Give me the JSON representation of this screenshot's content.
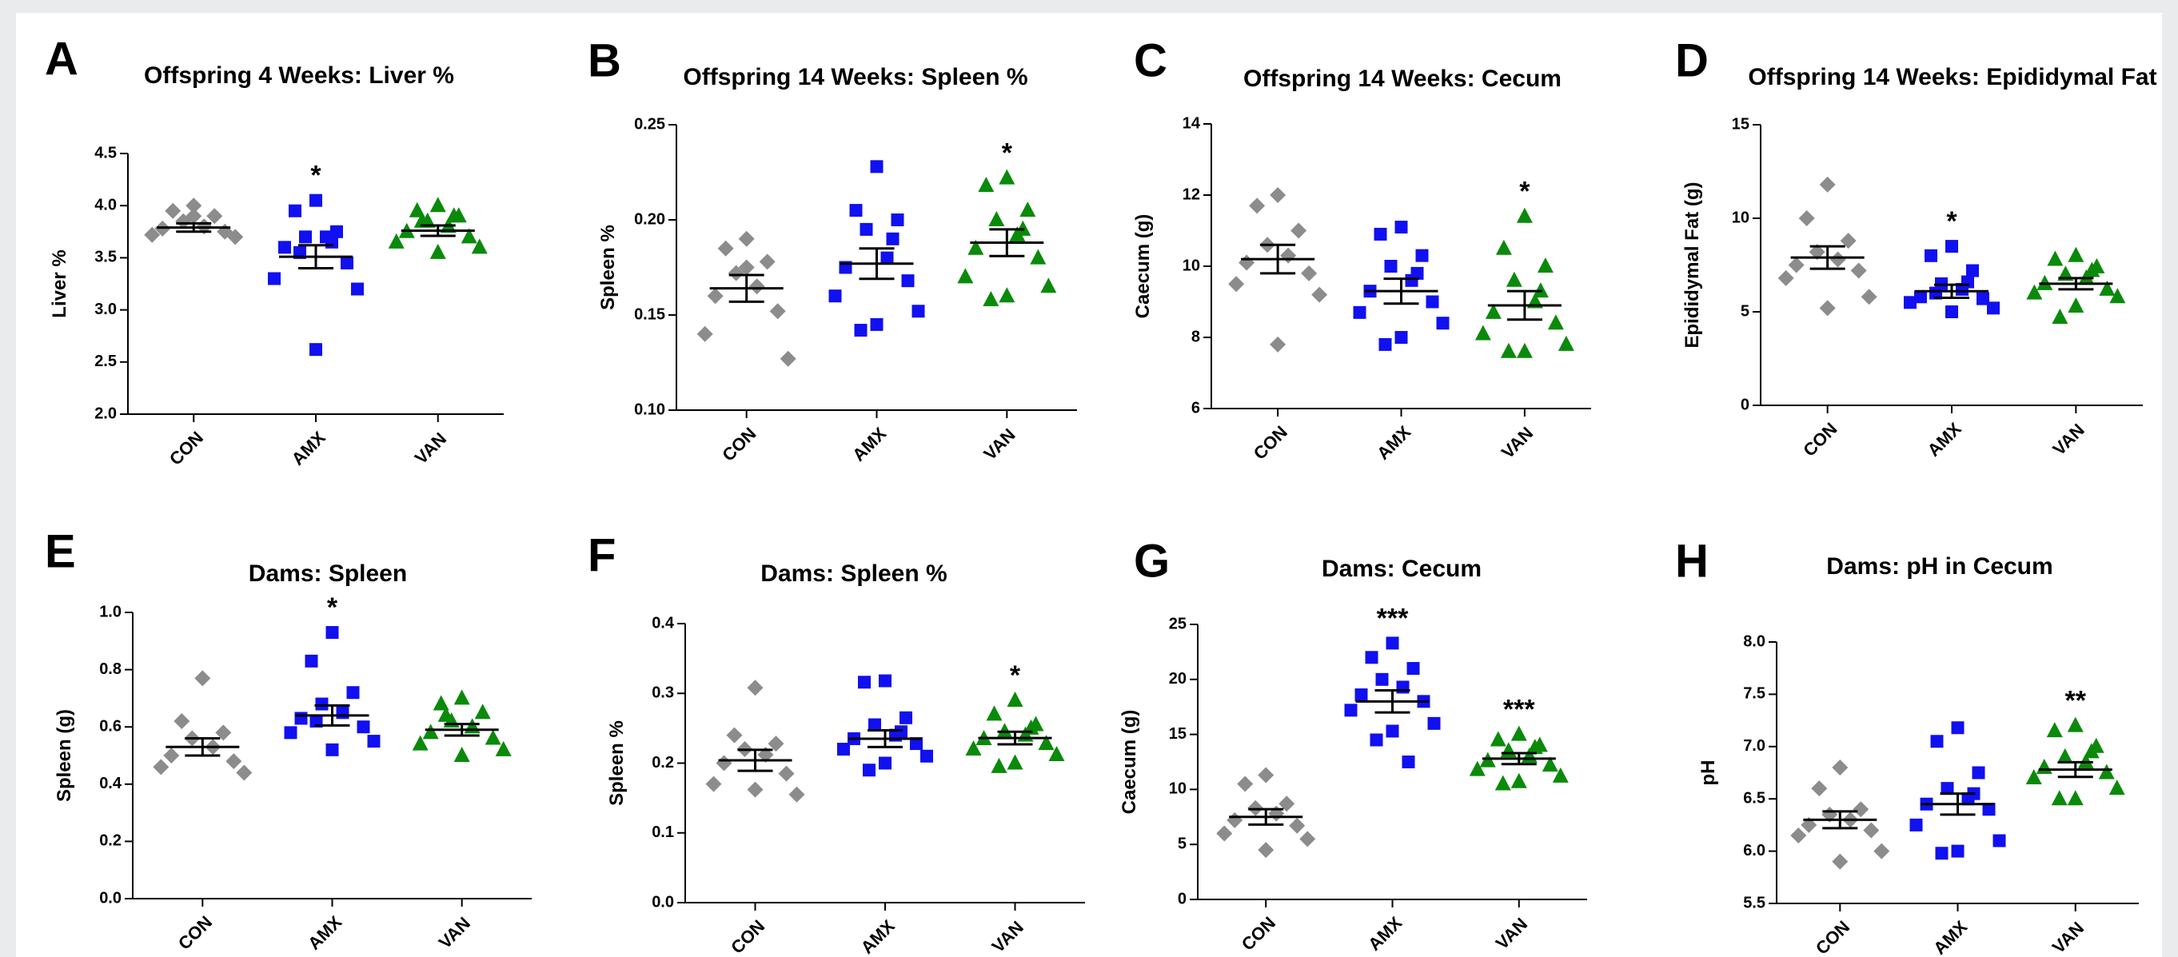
{
  "colors": {
    "CON": "#8c8c8c",
    "AMX": "#1010f0",
    "VAN": "#0a8a0a",
    "axis": "#000000",
    "mean": "#000000"
  },
  "markers": {
    "CON": "diamond",
    "AMX": "square",
    "VAN": "triangle"
  },
  "chart_data": [
    {
      "letter": "A",
      "title": "Offspring 4 Weeks: Liver %",
      "type": "scatter",
      "ylabel": "Liver %",
      "ylim": [
        2.0,
        4.5
      ],
      "yticks": [
        "2.0",
        "2.5",
        "3.0",
        "3.5",
        "4.0",
        "4.5"
      ],
      "categories": [
        "CON",
        "AMX",
        "VAN"
      ],
      "series": [
        {
          "name": "CON",
          "mean": 3.79,
          "sem": 0.04,
          "values": [
            4.0,
            3.95,
            3.9,
            3.85,
            3.8,
            3.78,
            3.75,
            3.72,
            3.7,
            3.9
          ]
        },
        {
          "name": "AMX",
          "mean": 3.51,
          "sem": 0.11,
          "values": [
            4.05,
            3.95,
            3.75,
            3.7,
            3.7,
            3.6,
            3.45,
            3.3,
            3.2,
            2.62,
            3.55,
            3.65
          ]
        },
        {
          "name": "VAN",
          "mean": 3.76,
          "sem": 0.05,
          "values": [
            4.0,
            3.95,
            3.9,
            3.85,
            3.8,
            3.75,
            3.7,
            3.65,
            3.6,
            3.55,
            3.85,
            3.9
          ]
        }
      ],
      "significance": {
        "CON": "",
        "AMX": "*",
        "VAN": ""
      }
    },
    {
      "letter": "B",
      "title": "Offspring 14 Weeks: Spleen %",
      "type": "scatter",
      "ylabel": "Spleen %",
      "ylim": [
        0.1,
        0.25
      ],
      "yticks": [
        "0.10",
        "0.15",
        "0.20",
        "0.25"
      ],
      "categories": [
        "CON",
        "AMX",
        "VAN"
      ],
      "series": [
        {
          "name": "CON",
          "mean": 0.164,
          "sem": 0.007,
          "values": [
            0.19,
            0.185,
            0.178,
            0.172,
            0.165,
            0.16,
            0.152,
            0.14,
            0.127,
            0.175
          ]
        },
        {
          "name": "AMX",
          "mean": 0.177,
          "sem": 0.008,
          "values": [
            0.228,
            0.205,
            0.2,
            0.195,
            0.18,
            0.175,
            0.168,
            0.16,
            0.152,
            0.145,
            0.142,
            0.19
          ]
        },
        {
          "name": "VAN",
          "mean": 0.188,
          "sem": 0.007,
          "values": [
            0.222,
            0.218,
            0.205,
            0.2,
            0.192,
            0.185,
            0.18,
            0.17,
            0.165,
            0.16,
            0.158,
            0.195
          ]
        }
      ],
      "significance": {
        "CON": "",
        "AMX": "",
        "VAN": "*"
      }
    },
    {
      "letter": "C",
      "title": "Offspring 14 Weeks: Cecum",
      "type": "scatter",
      "ylabel": "Caecum (g)",
      "ylim": [
        6,
        14
      ],
      "yticks": [
        "6",
        "8",
        "10",
        "12",
        "14"
      ],
      "categories": [
        "CON",
        "AMX",
        "VAN"
      ],
      "series": [
        {
          "name": "CON",
          "mean": 10.2,
          "sem": 0.4,
          "values": [
            12.0,
            11.7,
            11.0,
            10.6,
            10.3,
            10.1,
            9.8,
            9.5,
            9.2,
            7.8
          ]
        },
        {
          "name": "AMX",
          "mean": 9.3,
          "sem": 0.35,
          "values": [
            11.1,
            10.9,
            10.3,
            10.0,
            9.6,
            9.3,
            9.0,
            8.7,
            8.4,
            8.0,
            7.8,
            9.8
          ]
        },
        {
          "name": "VAN",
          "mean": 8.9,
          "sem": 0.4,
          "values": [
            11.4,
            10.5,
            10.0,
            9.6,
            9.0,
            8.7,
            8.4,
            8.1,
            7.8,
            7.6,
            7.6,
            9.3
          ]
        }
      ],
      "significance": {
        "CON": "",
        "AMX": "",
        "VAN": "*"
      }
    },
    {
      "letter": "D",
      "title": "Offspring 14 Weeks: Epididymal Fat",
      "type": "scatter",
      "ylabel": "Epididymal Fat (g)",
      "ylim": [
        0,
        15
      ],
      "yticks": [
        "0",
        "5",
        "10",
        "15"
      ],
      "categories": [
        "CON",
        "AMX",
        "VAN"
      ],
      "series": [
        {
          "name": "CON",
          "mean": 7.9,
          "sem": 0.6,
          "values": [
            11.8,
            10.0,
            8.8,
            8.2,
            7.8,
            7.5,
            7.2,
            6.8,
            5.8,
            5.2
          ]
        },
        {
          "name": "AMX",
          "mean": 6.1,
          "sem": 0.35,
          "values": [
            8.5,
            8.0,
            7.2,
            6.5,
            6.2,
            5.8,
            5.7,
            5.5,
            5.2,
            5.0,
            6.0,
            6.6
          ]
        },
        {
          "name": "VAN",
          "mean": 6.5,
          "sem": 0.3,
          "values": [
            8.0,
            7.8,
            7.4,
            7.0,
            6.8,
            6.5,
            6.2,
            6.0,
            5.8,
            5.3,
            4.7,
            7.2
          ]
        }
      ],
      "significance": {
        "CON": "",
        "AMX": "*",
        "VAN": ""
      }
    },
    {
      "letter": "E",
      "title": "Dams: Spleen",
      "type": "scatter",
      "ylabel": "Spleen (g)",
      "ylim": [
        0.0,
        1.0
      ],
      "yticks": [
        "0.0",
        "0.2",
        "0.4",
        "0.6",
        "0.8",
        "1.0"
      ],
      "categories": [
        "CON",
        "AMX",
        "VAN"
      ],
      "series": [
        {
          "name": "CON",
          "mean": 0.53,
          "sem": 0.03,
          "values": [
            0.77,
            0.62,
            0.58,
            0.56,
            0.53,
            0.5,
            0.48,
            0.46,
            0.44
          ]
        },
        {
          "name": "AMX",
          "mean": 0.64,
          "sem": 0.035,
          "values": [
            0.93,
            0.83,
            0.72,
            0.68,
            0.65,
            0.63,
            0.6,
            0.58,
            0.55,
            0.52,
            0.62
          ]
        },
        {
          "name": "VAN",
          "mean": 0.59,
          "sem": 0.02,
          "values": [
            0.7,
            0.68,
            0.65,
            0.62,
            0.6,
            0.58,
            0.56,
            0.54,
            0.52,
            0.5,
            0.64
          ]
        }
      ],
      "significance": {
        "CON": "",
        "AMX": "*",
        "VAN": ""
      }
    },
    {
      "letter": "F",
      "title": "Dams: Spleen %",
      "type": "scatter",
      "ylabel": "Spleen %",
      "ylim": [
        0.0,
        0.4
      ],
      "yticks": [
        "0.0",
        "0.1",
        "0.2",
        "0.3",
        "0.4"
      ],
      "categories": [
        "CON",
        "AMX",
        "VAN"
      ],
      "series": [
        {
          "name": "CON",
          "mean": 0.204,
          "sem": 0.015,
          "values": [
            0.308,
            0.24,
            0.228,
            0.22,
            0.212,
            0.2,
            0.185,
            0.17,
            0.155,
            0.162
          ]
        },
        {
          "name": "AMX",
          "mean": 0.235,
          "sem": 0.012,
          "values": [
            0.318,
            0.316,
            0.265,
            0.255,
            0.24,
            0.235,
            0.228,
            0.22,
            0.21,
            0.2,
            0.19,
            0.245
          ]
        },
        {
          "name": "VAN",
          "mean": 0.236,
          "sem": 0.009,
          "values": [
            0.29,
            0.27,
            0.255,
            0.245,
            0.24,
            0.235,
            0.228,
            0.22,
            0.212,
            0.2,
            0.195,
            0.25
          ]
        }
      ],
      "significance": {
        "CON": "",
        "AMX": "",
        "VAN": "*"
      }
    },
    {
      "letter": "G",
      "title": "Dams: Cecum",
      "type": "scatter",
      "ylabel": "Caecum (g)",
      "ylim": [
        0,
        25
      ],
      "yticks": [
        "0",
        "5",
        "10",
        "15",
        "20",
        "25"
      ],
      "categories": [
        "CON",
        "AMX",
        "VAN"
      ],
      "series": [
        {
          "name": "CON",
          "mean": 7.5,
          "sem": 0.7,
          "values": [
            11.3,
            10.5,
            8.7,
            8.3,
            7.8,
            7.2,
            6.7,
            6.0,
            5.5,
            4.5
          ]
        },
        {
          "name": "AMX",
          "mean": 18.0,
          "sem": 1.0,
          "values": [
            23.3,
            22.0,
            21.0,
            20.0,
            19.3,
            18.6,
            18.0,
            17.2,
            16.0,
            15.3,
            14.5,
            12.5
          ]
        },
        {
          "name": "VAN",
          "mean": 12.8,
          "sem": 0.5,
          "values": [
            15.0,
            14.5,
            14.0,
            13.5,
            13.0,
            12.6,
            12.2,
            11.8,
            11.2,
            10.7,
            10.5,
            13.8
          ]
        }
      ],
      "significance": {
        "CON": "",
        "AMX": "***",
        "VAN": "***"
      }
    },
    {
      "letter": "H",
      "title": "Dams: pH in Cecum",
      "type": "scatter",
      "ylabel": "pH",
      "ylim": [
        5.5,
        8.0
      ],
      "yticks": [
        "5.5",
        "6.0",
        "6.5",
        "7.0",
        "7.5",
        "8.0"
      ],
      "categories": [
        "CON",
        "AMX",
        "VAN"
      ],
      "series": [
        {
          "name": "CON",
          "mean": 6.3,
          "sem": 0.08,
          "values": [
            6.8,
            6.6,
            6.4,
            6.35,
            6.3,
            6.25,
            6.2,
            6.15,
            6.0,
            5.9
          ]
        },
        {
          "name": "AMX",
          "mean": 6.45,
          "sem": 0.1,
          "values": [
            7.18,
            7.05,
            6.75,
            6.6,
            6.5,
            6.45,
            6.4,
            6.25,
            6.1,
            6.0,
            5.98,
            6.55
          ]
        },
        {
          "name": "VAN",
          "mean": 6.78,
          "sem": 0.07,
          "values": [
            7.2,
            7.15,
            7.0,
            6.9,
            6.85,
            6.8,
            6.75,
            6.7,
            6.6,
            6.5,
            6.5,
            6.95
          ]
        }
      ],
      "significance": {
        "CON": "",
        "AMX": "",
        "VAN": "**"
      }
    }
  ]
}
